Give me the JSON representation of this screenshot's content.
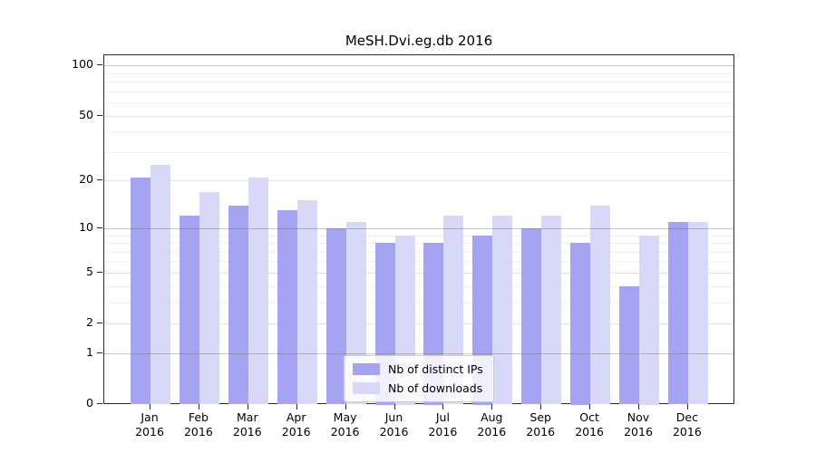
{
  "title": "MeSH.Dvi.eg.db 2016",
  "colors": {
    "bar_distinct_ips": "#a4a4f3",
    "bar_downloads": "#d8d8f8",
    "grid_minor": "#f0f0f0",
    "grid_labeled": "#e4e4e4",
    "grid_major": "#6e6e6e",
    "axis": "#2b2b2b",
    "text": "#000000"
  },
  "chart_data": {
    "type": "bar",
    "title": "MeSH.Dvi.eg.db 2016",
    "xlabel": "",
    "ylabel": "",
    "categories": [
      "Jan 2016",
      "Feb 2016",
      "Mar 2016",
      "Apr 2016",
      "May 2016",
      "Jun 2016",
      "Jul 2016",
      "Aug 2016",
      "Sep 2016",
      "Oct 2016",
      "Nov 2016",
      "Dec 2016"
    ],
    "series": [
      {
        "name": "Nb of distinct IPs",
        "color": "#a4a4f3",
        "values": [
          21,
          12,
          14,
          13,
          10,
          8,
          8,
          9,
          10,
          8,
          4,
          11
        ]
      },
      {
        "name": "Nb of downloads",
        "color": "#d8d8f8",
        "values": [
          25,
          17,
          21,
          15,
          11,
          9,
          12,
          12,
          12,
          14,
          9,
          11
        ]
      }
    ],
    "y_scale": "log10(1+x)",
    "y_ticks": [
      0,
      1,
      2,
      5,
      10,
      20,
      50,
      100
    ],
    "y_major_gridlines": [
      1,
      10,
      100
    ],
    "y_labeled_gridlines": [
      2,
      5,
      20,
      50
    ],
    "y_minor_gridlines": [
      3,
      4,
      6,
      7,
      8,
      9,
      30,
      40,
      60,
      70,
      80,
      90
    ],
    "ylim": [
      0,
      116
    ],
    "grid": true,
    "legend_position": "bottom-center"
  },
  "legend": {
    "items": [
      {
        "label": "Nb of distinct IPs",
        "color": "#a4a4f3"
      },
      {
        "label": "Nb of downloads",
        "color": "#d8d8f8"
      }
    ]
  }
}
